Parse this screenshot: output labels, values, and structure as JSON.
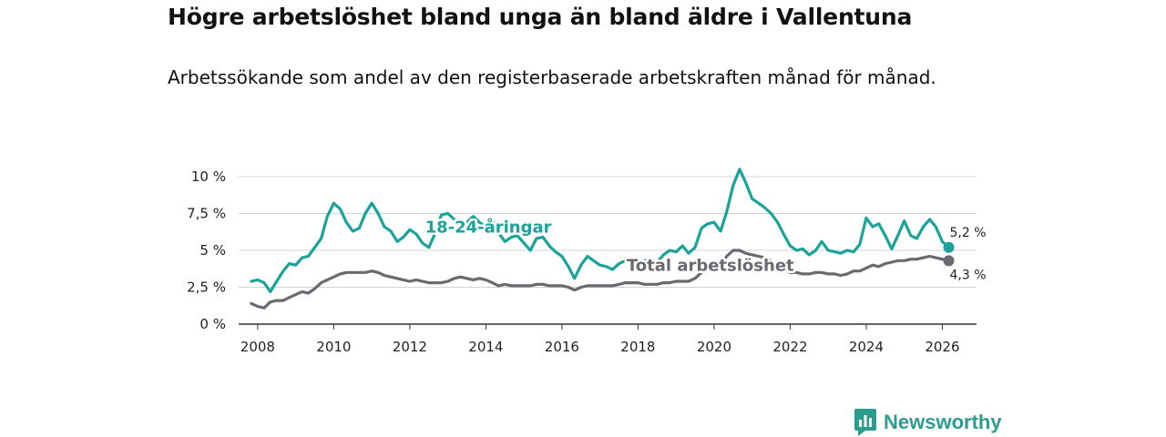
{
  "header": {
    "title": "Högre arbetslöshet bland unga än bland äldre i Vallentuna",
    "subtitle": "Arbetssökande som andel av den registerbaserade arbetskraften månad för månad."
  },
  "brand": {
    "name": "Newsworthy",
    "color": "#2a9d8f"
  },
  "chart_data": {
    "type": "line",
    "xlim": [
      2007.5,
      2026.9
    ],
    "ylim": [
      0,
      10
    ],
    "x_ticks": [
      {
        "value": 2008,
        "label": "2008"
      },
      {
        "value": 2010,
        "label": "2010"
      },
      {
        "value": 2012,
        "label": "2012"
      },
      {
        "value": 2014,
        "label": "2014"
      },
      {
        "value": 2016,
        "label": "2016"
      },
      {
        "value": 2018,
        "label": "2018"
      },
      {
        "value": 2020,
        "label": "2020"
      },
      {
        "value": 2022,
        "label": "2022"
      },
      {
        "value": 2024,
        "label": "2024"
      },
      {
        "value": 2026,
        "label": "2026"
      }
    ],
    "y_ticks": [
      {
        "value": 0,
        "label": "0 %"
      },
      {
        "value": 2.5,
        "label": "2,5 %"
      },
      {
        "value": 5,
        "label": "5 %"
      },
      {
        "value": 7.5,
        "label": "7,5 %"
      },
      {
        "value": 10,
        "label": "10 %"
      }
    ],
    "grid": true,
    "series": [
      {
        "name": "18-24-åringar",
        "color": "#1aa398",
        "label_at": [
          2012.4,
          6.2
        ],
        "end_label": "5,2 %",
        "points": [
          [
            2007.83,
            2.9
          ],
          [
            2008.0,
            3.0
          ],
          [
            2008.17,
            2.8
          ],
          [
            2008.33,
            2.2
          ],
          [
            2008.5,
            2.9
          ],
          [
            2008.67,
            3.6
          ],
          [
            2008.83,
            4.1
          ],
          [
            2009.0,
            4.0
          ],
          [
            2009.17,
            4.5
          ],
          [
            2009.33,
            4.6
          ],
          [
            2009.5,
            5.2
          ],
          [
            2009.67,
            5.8
          ],
          [
            2009.83,
            7.3
          ],
          [
            2010.0,
            8.2
          ],
          [
            2010.17,
            7.8
          ],
          [
            2010.33,
            6.9
          ],
          [
            2010.5,
            6.3
          ],
          [
            2010.67,
            6.5
          ],
          [
            2010.83,
            7.5
          ],
          [
            2011.0,
            8.2
          ],
          [
            2011.17,
            7.5
          ],
          [
            2011.33,
            6.6
          ],
          [
            2011.5,
            6.3
          ],
          [
            2011.67,
            5.6
          ],
          [
            2011.83,
            5.9
          ],
          [
            2012.0,
            6.4
          ],
          [
            2012.17,
            6.1
          ],
          [
            2012.33,
            5.5
          ],
          [
            2012.5,
            5.2
          ],
          [
            2012.67,
            6.2
          ],
          [
            2012.83,
            7.4
          ],
          [
            2013.0,
            7.5
          ],
          [
            2013.17,
            7.1
          ],
          [
            2013.33,
            6.6
          ],
          [
            2013.5,
            6.9
          ],
          [
            2013.67,
            7.3
          ],
          [
            2013.83,
            6.9
          ],
          [
            2014.0,
            6.6
          ],
          [
            2014.17,
            7.1
          ],
          [
            2014.33,
            6.2
          ],
          [
            2014.5,
            5.6
          ],
          [
            2014.67,
            5.9
          ],
          [
            2014.83,
            6.0
          ],
          [
            2015.0,
            5.5
          ],
          [
            2015.17,
            5.0
          ],
          [
            2015.33,
            5.8
          ],
          [
            2015.5,
            5.9
          ],
          [
            2015.67,
            5.3
          ],
          [
            2015.83,
            4.9
          ],
          [
            2016.0,
            4.6
          ],
          [
            2016.17,
            3.9
          ],
          [
            2016.33,
            3.1
          ],
          [
            2016.5,
            4.0
          ],
          [
            2016.67,
            4.6
          ],
          [
            2016.83,
            4.3
          ],
          [
            2017.0,
            4.0
          ],
          [
            2017.17,
            3.9
          ],
          [
            2017.33,
            3.7
          ],
          [
            2017.5,
            4.1
          ],
          [
            2017.67,
            4.3
          ],
          [
            2017.83,
            4.1
          ],
          [
            2018.0,
            4.0
          ],
          [
            2018.17,
            4.3
          ],
          [
            2018.33,
            4.4
          ],
          [
            2018.5,
            4.2
          ],
          [
            2018.67,
            4.7
          ],
          [
            2018.83,
            5.0
          ],
          [
            2019.0,
            4.9
          ],
          [
            2019.17,
            5.3
          ],
          [
            2019.33,
            4.8
          ],
          [
            2019.5,
            5.2
          ],
          [
            2019.67,
            6.5
          ],
          [
            2019.83,
            6.8
          ],
          [
            2020.0,
            6.9
          ],
          [
            2020.17,
            6.3
          ],
          [
            2020.33,
            7.6
          ],
          [
            2020.5,
            9.4
          ],
          [
            2020.67,
            10.5
          ],
          [
            2020.83,
            9.6
          ],
          [
            2021.0,
            8.5
          ],
          [
            2021.17,
            8.2
          ],
          [
            2021.33,
            7.9
          ],
          [
            2021.5,
            7.5
          ],
          [
            2021.67,
            6.9
          ],
          [
            2021.83,
            6.1
          ],
          [
            2022.0,
            5.3
          ],
          [
            2022.17,
            5.0
          ],
          [
            2022.33,
            5.1
          ],
          [
            2022.5,
            4.7
          ],
          [
            2022.67,
            5.0
          ],
          [
            2022.83,
            5.6
          ],
          [
            2023.0,
            5.0
          ],
          [
            2023.17,
            4.9
          ],
          [
            2023.33,
            4.8
          ],
          [
            2023.5,
            5.0
          ],
          [
            2023.67,
            4.9
          ],
          [
            2023.83,
            5.4
          ],
          [
            2024.0,
            7.2
          ],
          [
            2024.17,
            6.6
          ],
          [
            2024.33,
            6.8
          ],
          [
            2024.5,
            6.0
          ],
          [
            2024.67,
            5.1
          ],
          [
            2024.83,
            6.0
          ],
          [
            2025.0,
            7.0
          ],
          [
            2025.17,
            6.0
          ],
          [
            2025.33,
            5.8
          ],
          [
            2025.5,
            6.6
          ],
          [
            2025.67,
            7.1
          ],
          [
            2025.83,
            6.6
          ],
          [
            2026.0,
            5.6
          ],
          [
            2026.17,
            5.2
          ]
        ]
      },
      {
        "name": "Total arbetslöshet",
        "color": "#6b6870",
        "label_at": [
          2017.7,
          3.6
        ],
        "end_label": "4,3 %",
        "points": [
          [
            2007.83,
            1.4
          ],
          [
            2008.0,
            1.2
          ],
          [
            2008.17,
            1.1
          ],
          [
            2008.33,
            1.5
          ],
          [
            2008.5,
            1.6
          ],
          [
            2008.67,
            1.6
          ],
          [
            2008.83,
            1.8
          ],
          [
            2009.0,
            2.0
          ],
          [
            2009.17,
            2.2
          ],
          [
            2009.33,
            2.1
          ],
          [
            2009.5,
            2.4
          ],
          [
            2009.67,
            2.8
          ],
          [
            2009.83,
            3.0
          ],
          [
            2010.0,
            3.2
          ],
          [
            2010.17,
            3.4
          ],
          [
            2010.33,
            3.5
          ],
          [
            2010.5,
            3.5
          ],
          [
            2010.67,
            3.5
          ],
          [
            2010.83,
            3.5
          ],
          [
            2011.0,
            3.6
          ],
          [
            2011.17,
            3.5
          ],
          [
            2011.33,
            3.3
          ],
          [
            2011.5,
            3.2
          ],
          [
            2011.67,
            3.1
          ],
          [
            2011.83,
            3.0
          ],
          [
            2012.0,
            2.9
          ],
          [
            2012.17,
            3.0
          ],
          [
            2012.33,
            2.9
          ],
          [
            2012.5,
            2.8
          ],
          [
            2012.67,
            2.8
          ],
          [
            2012.83,
            2.8
          ],
          [
            2013.0,
            2.9
          ],
          [
            2013.17,
            3.1
          ],
          [
            2013.33,
            3.2
          ],
          [
            2013.5,
            3.1
          ],
          [
            2013.67,
            3.0
          ],
          [
            2013.83,
            3.1
          ],
          [
            2014.0,
            3.0
          ],
          [
            2014.17,
            2.8
          ],
          [
            2014.33,
            2.6
          ],
          [
            2014.5,
            2.7
          ],
          [
            2014.67,
            2.6
          ],
          [
            2014.83,
            2.6
          ],
          [
            2015.0,
            2.6
          ],
          [
            2015.17,
            2.6
          ],
          [
            2015.33,
            2.7
          ],
          [
            2015.5,
            2.7
          ],
          [
            2015.67,
            2.6
          ],
          [
            2015.83,
            2.6
          ],
          [
            2016.0,
            2.6
          ],
          [
            2016.17,
            2.5
          ],
          [
            2016.33,
            2.3
          ],
          [
            2016.5,
            2.5
          ],
          [
            2016.67,
            2.6
          ],
          [
            2016.83,
            2.6
          ],
          [
            2017.0,
            2.6
          ],
          [
            2017.17,
            2.6
          ],
          [
            2017.33,
            2.6
          ],
          [
            2017.5,
            2.7
          ],
          [
            2017.67,
            2.8
          ],
          [
            2017.83,
            2.8
          ],
          [
            2018.0,
            2.8
          ],
          [
            2018.17,
            2.7
          ],
          [
            2018.33,
            2.7
          ],
          [
            2018.5,
            2.7
          ],
          [
            2018.67,
            2.8
          ],
          [
            2018.83,
            2.8
          ],
          [
            2019.0,
            2.9
          ],
          [
            2019.17,
            2.9
          ],
          [
            2019.33,
            2.9
          ],
          [
            2019.5,
            3.1
          ],
          [
            2019.67,
            3.5
          ],
          [
            2019.83,
            3.7
          ],
          [
            2020.0,
            3.8
          ],
          [
            2020.17,
            4.0
          ],
          [
            2020.33,
            4.6
          ],
          [
            2020.5,
            5.0
          ],
          [
            2020.67,
            5.0
          ],
          [
            2020.83,
            4.8
          ],
          [
            2021.0,
            4.7
          ],
          [
            2021.17,
            4.6
          ],
          [
            2021.33,
            4.5
          ],
          [
            2021.5,
            4.3
          ],
          [
            2021.67,
            4.0
          ],
          [
            2021.83,
            3.8
          ],
          [
            2022.0,
            3.5
          ],
          [
            2022.17,
            3.5
          ],
          [
            2022.33,
            3.4
          ],
          [
            2022.5,
            3.4
          ],
          [
            2022.67,
            3.5
          ],
          [
            2022.83,
            3.5
          ],
          [
            2023.0,
            3.4
          ],
          [
            2023.17,
            3.4
          ],
          [
            2023.33,
            3.3
          ],
          [
            2023.5,
            3.4
          ],
          [
            2023.67,
            3.6
          ],
          [
            2023.83,
            3.6
          ],
          [
            2024.0,
            3.8
          ],
          [
            2024.17,
            4.0
          ],
          [
            2024.33,
            3.9
          ],
          [
            2024.5,
            4.1
          ],
          [
            2024.67,
            4.2
          ],
          [
            2024.83,
            4.3
          ],
          [
            2025.0,
            4.3
          ],
          [
            2025.17,
            4.4
          ],
          [
            2025.33,
            4.4
          ],
          [
            2025.5,
            4.5
          ],
          [
            2025.67,
            4.6
          ],
          [
            2025.83,
            4.5
          ],
          [
            2026.0,
            4.4
          ],
          [
            2026.17,
            4.3
          ]
        ]
      }
    ]
  }
}
